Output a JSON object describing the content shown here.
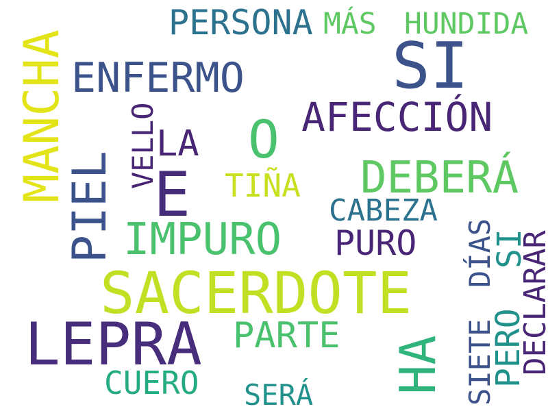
{
  "cloud": {
    "words": {
      "persona": {
        "text": "PERSONA",
        "color": "#2c728e"
      },
      "mas": {
        "text": "MÁS",
        "color": "#5ec962"
      },
      "hundida": {
        "text": "HUNDIDA",
        "color": "#5ec962"
      },
      "si": {
        "text": "SI",
        "color": "#3b528b"
      },
      "enfermo": {
        "text": "ENFERMO",
        "color": "#3b528b"
      },
      "afeccion": {
        "text": "AFECCIÓN",
        "color": "#482575"
      },
      "o": {
        "text": "O",
        "color": "#4ac16d"
      },
      "la": {
        "text": "LA",
        "color": "#482575"
      },
      "debera": {
        "text": "DEBERÁ",
        "color": "#5ec962"
      },
      "e": {
        "text": "E",
        "color": "#472c7a"
      },
      "tina": {
        "text": "TIÑA",
        "color": "#c8e020"
      },
      "cabeza": {
        "text": "CABEZA",
        "color": "#2c728e"
      },
      "impuro": {
        "text": "IMPURO",
        "color": "#4ac16d"
      },
      "puro": {
        "text": "PURO",
        "color": "#482575"
      },
      "sacerdote": {
        "text": "SACERDOTE",
        "color": "#c2df23"
      },
      "lepra": {
        "text": "LEPRA",
        "color": "#472d7b"
      },
      "parte": {
        "text": "PARTE",
        "color": "#4ac16d"
      },
      "cuero": {
        "text": "CUERO",
        "color": "#25ab82"
      },
      "sera": {
        "text": "SERÁ",
        "color": "#21918c"
      },
      "mancha": {
        "text": "MANCHA",
        "color": "#e2e418"
      },
      "piel": {
        "text": "PIEL",
        "color": "#3b528b"
      },
      "vello": {
        "text": "VELLO",
        "color": "#482575"
      },
      "ha": {
        "text": "HA",
        "color": "#2fb47c"
      },
      "siete": {
        "text": "SIETE",
        "color": "#3b528b"
      },
      "dias": {
        "text": "DÍAS",
        "color": "#3b528b"
      },
      "pero": {
        "text": "PERO",
        "color": "#21918c"
      },
      "si2": {
        "text": "SI",
        "color": "#21918c"
      },
      "declarar": {
        "text": "DECLARAR",
        "color": "#482575"
      }
    }
  }
}
